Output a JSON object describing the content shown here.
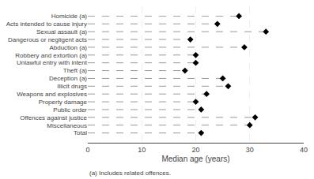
{
  "chart_data": {
    "type": "dot",
    "orientation": "horizontal",
    "categories": [
      "Homicide (a)",
      "Acts intended to cause injury",
      "Sexual assault (a)",
      "Dangerous or negligent acts",
      "Abduction (a)",
      "Robbery and extortion (a)",
      "Unlawful entry with intent",
      "Theft (a)",
      "Deception (a)",
      "Illicit drugs",
      "Weapons and explosives",
      "Property damage",
      "Public order",
      "Offences against justice",
      "Miscellaneous",
      "Total"
    ],
    "values": [
      28,
      24,
      33,
      19,
      29,
      20,
      20,
      18,
      25,
      26,
      22,
      20,
      21,
      31,
      30,
      21
    ],
    "xlim": [
      0,
      40
    ],
    "xticks": [
      0,
      10,
      20,
      30,
      40
    ],
    "xlabel": "Median age (years)",
    "color": "#000000",
    "marker": "diamond",
    "line_style": "dash",
    "grid": true,
    "annotations": [
      "(a) Includes related offences."
    ]
  }
}
